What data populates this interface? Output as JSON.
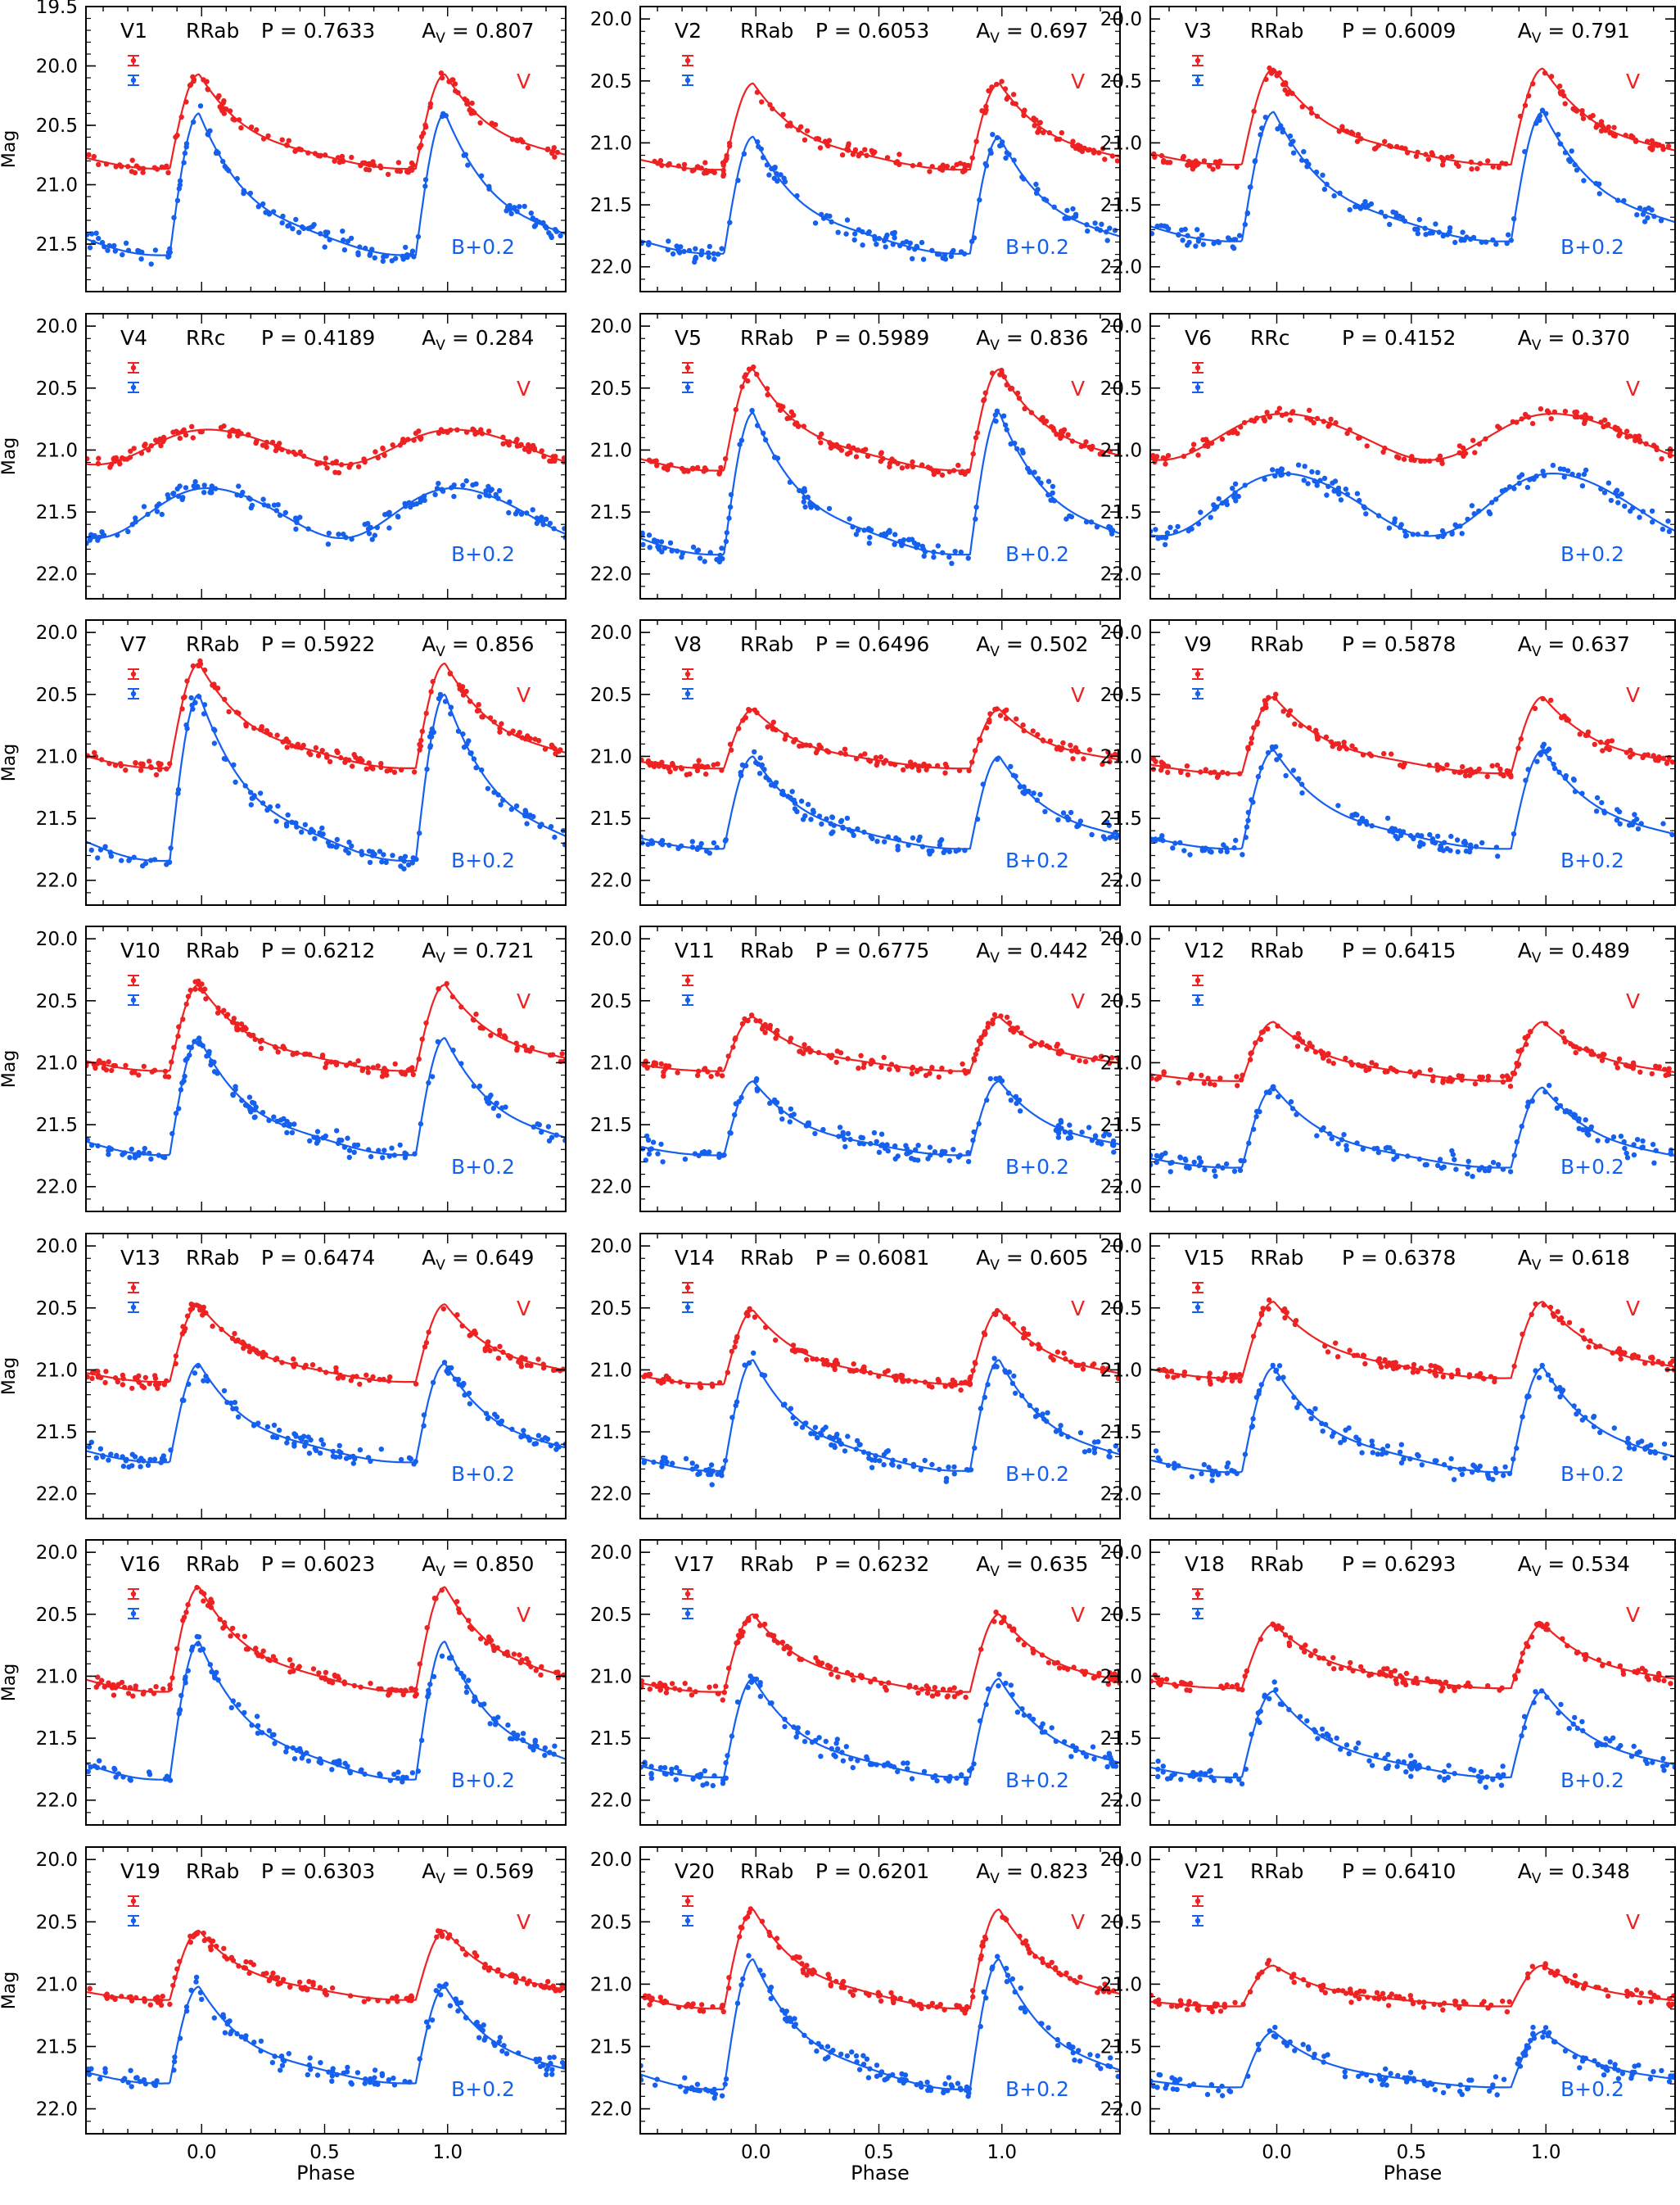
{
  "figure": {
    "xlabel": "Phase",
    "ylabel": "Mag",
    "band_v_label": "V",
    "band_b_label": "B+0.2",
    "colors": {
      "v": "#ee2222",
      "b": "#1560ee",
      "axis": "#000000"
    }
  },
  "chart_data": [
    {
      "type": "scatter",
      "id": "V1",
      "class": "RRab",
      "period": "0.7633",
      "amp": "0.807",
      "ylim": [
        21.9,
        19.5
      ],
      "yticks": [
        19.5,
        20.0,
        20.5,
        21.0,
        21.5
      ],
      "v_level": 20.07,
      "v_amp": 0.8,
      "b_level": 20.4,
      "b_amp": 1.2
    },
    {
      "type": "scatter",
      "id": "V2",
      "class": "RRab",
      "period": "0.6053",
      "amp": "0.697",
      "ylim": [
        22.2,
        19.9
      ],
      "yticks": [
        20.0,
        20.5,
        21.0,
        21.5,
        22.0
      ],
      "v_level": 20.52,
      "v_amp": 0.7,
      "b_level": 20.95,
      "b_amp": 0.95
    },
    {
      "type": "scatter",
      "id": "V3",
      "class": "RRab",
      "period": "0.6009",
      "amp": "0.791",
      "ylim": [
        22.2,
        19.9
      ],
      "yticks": [
        20.0,
        20.5,
        21.0,
        21.5,
        22.0
      ],
      "v_level": 20.4,
      "v_amp": 0.78,
      "b_level": 20.75,
      "b_amp": 1.05
    },
    {
      "type": "scatter",
      "id": "V4",
      "class": "RRc",
      "period": "0.4189",
      "amp": "0.284",
      "ylim": [
        22.2,
        19.9
      ],
      "yticks": [
        20.0,
        20.5,
        21.0,
        21.5,
        22.0
      ],
      "v_level": 20.83,
      "v_amp": 0.28,
      "b_level": 21.3,
      "b_amp": 0.4
    },
    {
      "type": "scatter",
      "id": "V5",
      "class": "RRab",
      "period": "0.5989",
      "amp": "0.836",
      "ylim": [
        22.2,
        19.9
      ],
      "yticks": [
        20.0,
        20.5,
        21.0,
        21.5,
        22.0
      ],
      "v_level": 20.35,
      "v_amp": 0.82,
      "b_level": 20.7,
      "b_amp": 1.15
    },
    {
      "type": "scatter",
      "id": "V6",
      "class": "RRc",
      "period": "0.4152",
      "amp": "0.370",
      "ylim": [
        22.2,
        19.9
      ],
      "yticks": [
        20.0,
        20.5,
        21.0,
        21.5,
        22.0
      ],
      "v_level": 20.7,
      "v_amp": 0.37,
      "b_level": 21.18,
      "b_amp": 0.5
    },
    {
      "type": "scatter",
      "id": "V7",
      "class": "RRab",
      "period": "0.5922",
      "amp": "0.856",
      "ylim": [
        22.2,
        19.9
      ],
      "yticks": [
        20.0,
        20.5,
        21.0,
        21.5,
        22.0
      ],
      "v_level": 20.25,
      "v_amp": 0.85,
      "b_level": 20.5,
      "b_amp": 1.35
    },
    {
      "type": "scatter",
      "id": "V8",
      "class": "RRab",
      "period": "0.6496",
      "amp": "0.502",
      "ylim": [
        22.2,
        19.9
      ],
      "yticks": [
        20.0,
        20.5,
        21.0,
        21.5,
        22.0
      ],
      "v_level": 20.62,
      "v_amp": 0.48,
      "b_level": 21.0,
      "b_amp": 0.75
    },
    {
      "type": "scatter",
      "id": "V9",
      "class": "RRab",
      "period": "0.5878",
      "amp": "0.637",
      "ylim": [
        22.2,
        19.9
      ],
      "yticks": [
        20.0,
        20.5,
        21.0,
        21.5,
        22.0
      ],
      "v_level": 20.52,
      "v_amp": 0.62,
      "b_level": 20.95,
      "b_amp": 0.8
    },
    {
      "type": "scatter",
      "id": "V10",
      "class": "RRab",
      "period": "0.6212",
      "amp": "0.721",
      "ylim": [
        22.2,
        19.9
      ],
      "yticks": [
        20.0,
        20.5,
        21.0,
        21.5,
        22.0
      ],
      "v_level": 20.37,
      "v_amp": 0.7,
      "b_level": 20.8,
      "b_amp": 0.95
    },
    {
      "type": "scatter",
      "id": "V11",
      "class": "RRab",
      "period": "0.6775",
      "amp": "0.442",
      "ylim": [
        22.2,
        19.9
      ],
      "yticks": [
        20.0,
        20.5,
        21.0,
        21.5,
        22.0
      ],
      "v_level": 20.63,
      "v_amp": 0.44,
      "b_level": 21.15,
      "b_amp": 0.6
    },
    {
      "type": "scatter",
      "id": "V12",
      "class": "RRab",
      "period": "0.6415",
      "amp": "0.489",
      "ylim": [
        22.2,
        19.9
      ],
      "yticks": [
        20.0,
        20.5,
        21.0,
        21.5,
        22.0
      ],
      "v_level": 20.67,
      "v_amp": 0.48,
      "b_level": 21.2,
      "b_amp": 0.65
    },
    {
      "type": "scatter",
      "id": "V13",
      "class": "RRab",
      "period": "0.6474",
      "amp": "0.649",
      "ylim": [
        22.2,
        19.9
      ],
      "yticks": [
        20.0,
        20.5,
        21.0,
        21.5,
        22.0
      ],
      "v_level": 20.47,
      "v_amp": 0.63,
      "b_level": 20.95,
      "b_amp": 0.8
    },
    {
      "type": "scatter",
      "id": "V14",
      "class": "RRab",
      "period": "0.6081",
      "amp": "0.605",
      "ylim": [
        22.2,
        19.9
      ],
      "yticks": [
        20.0,
        20.5,
        21.0,
        21.5,
        22.0
      ],
      "v_level": 20.52,
      "v_amp": 0.6,
      "b_level": 20.92,
      "b_amp": 0.9
    },
    {
      "type": "scatter",
      "id": "V15",
      "class": "RRab",
      "period": "0.6378",
      "amp": "0.618",
      "ylim": [
        22.2,
        19.9
      ],
      "yticks": [
        20.0,
        20.5,
        21.0,
        21.5,
        22.0
      ],
      "v_level": 20.45,
      "v_amp": 0.62,
      "b_level": 20.98,
      "b_amp": 0.85
    },
    {
      "type": "scatter",
      "id": "V16",
      "class": "RRab",
      "period": "0.6023",
      "amp": "0.850",
      "ylim": [
        22.2,
        19.9
      ],
      "yticks": [
        20.0,
        20.5,
        21.0,
        21.5,
        22.0
      ],
      "v_level": 20.28,
      "v_amp": 0.85,
      "b_level": 20.72,
      "b_amp": 1.12
    },
    {
      "type": "scatter",
      "id": "V17",
      "class": "RRab",
      "period": "0.6232",
      "amp": "0.635",
      "ylim": [
        22.2,
        19.9
      ],
      "yticks": [
        20.0,
        20.5,
        21.0,
        21.5,
        22.0
      ],
      "v_level": 20.5,
      "v_amp": 0.63,
      "b_level": 21.02,
      "b_amp": 0.8
    },
    {
      "type": "scatter",
      "id": "V18",
      "class": "RRab",
      "period": "0.6293",
      "amp": "0.534",
      "ylim": [
        22.2,
        19.9
      ],
      "yticks": [
        20.0,
        20.5,
        21.0,
        21.5,
        22.0
      ],
      "v_level": 20.58,
      "v_amp": 0.52,
      "b_level": 21.12,
      "b_amp": 0.7
    },
    {
      "type": "scatter",
      "id": "V19",
      "class": "RRab",
      "period": "0.6303",
      "amp": "0.569",
      "ylim": [
        22.2,
        19.9
      ],
      "yticks": [
        20.0,
        20.5,
        21.0,
        21.5,
        22.0
      ],
      "v_level": 20.57,
      "v_amp": 0.56,
      "b_level": 21.02,
      "b_amp": 0.78
    },
    {
      "type": "scatter",
      "id": "V20",
      "class": "RRab",
      "period": "0.6201",
      "amp": "0.823",
      "ylim": [
        22.2,
        19.9
      ],
      "yticks": [
        20.0,
        20.5,
        21.0,
        21.5,
        22.0
      ],
      "v_level": 20.4,
      "v_amp": 0.8,
      "b_level": 20.8,
      "b_amp": 1.05
    },
    {
      "type": "scatter",
      "id": "V21",
      "class": "RRab",
      "period": "0.6410",
      "amp": "0.348",
      "ylim": [
        22.2,
        19.9
      ],
      "yticks": [
        20.0,
        20.5,
        21.0,
        21.5,
        22.0
      ],
      "v_level": 20.85,
      "v_amp": 0.33,
      "b_level": 21.38,
      "b_amp": 0.45
    }
  ],
  "axes": {
    "xlim": [
      -0.47,
      1.48
    ],
    "xticks": [
      0.0,
      0.5,
      1.0
    ],
    "xtick_labels": [
      "0.0",
      "0.5",
      "1.0"
    ]
  }
}
